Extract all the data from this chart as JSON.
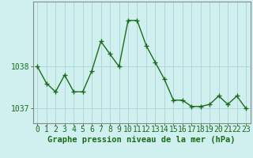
{
  "hours": [
    0,
    1,
    2,
    3,
    4,
    5,
    6,
    7,
    8,
    9,
    10,
    11,
    12,
    13,
    14,
    15,
    16,
    17,
    18,
    19,
    20,
    21,
    22,
    23
  ],
  "pressure": [
    1038.0,
    1037.6,
    1037.4,
    1037.8,
    1037.4,
    1037.4,
    1037.9,
    1038.6,
    1038.3,
    1038.0,
    1039.1,
    1039.1,
    1038.5,
    1038.1,
    1037.7,
    1037.2,
    1037.2,
    1037.05,
    1037.05,
    1037.1,
    1037.3,
    1037.1,
    1037.3,
    1037.0
  ],
  "line_color": "#1a6b1a",
  "marker": "+",
  "bg_color": "#d0f0f0",
  "grid_color": "#aad4d4",
  "axis_label_color": "#1a6b1a",
  "xlabel": "Graphe pression niveau de la mer (hPa)",
  "yticks": [
    1037,
    1038
  ],
  "ylim": [
    1036.65,
    1039.55
  ],
  "xlim": [
    -0.5,
    23.5
  ],
  "xlabel_fontsize": 7.5,
  "tick_fontsize": 7,
  "marker_size": 4,
  "line_width": 1.0,
  "border_color": "#888888"
}
